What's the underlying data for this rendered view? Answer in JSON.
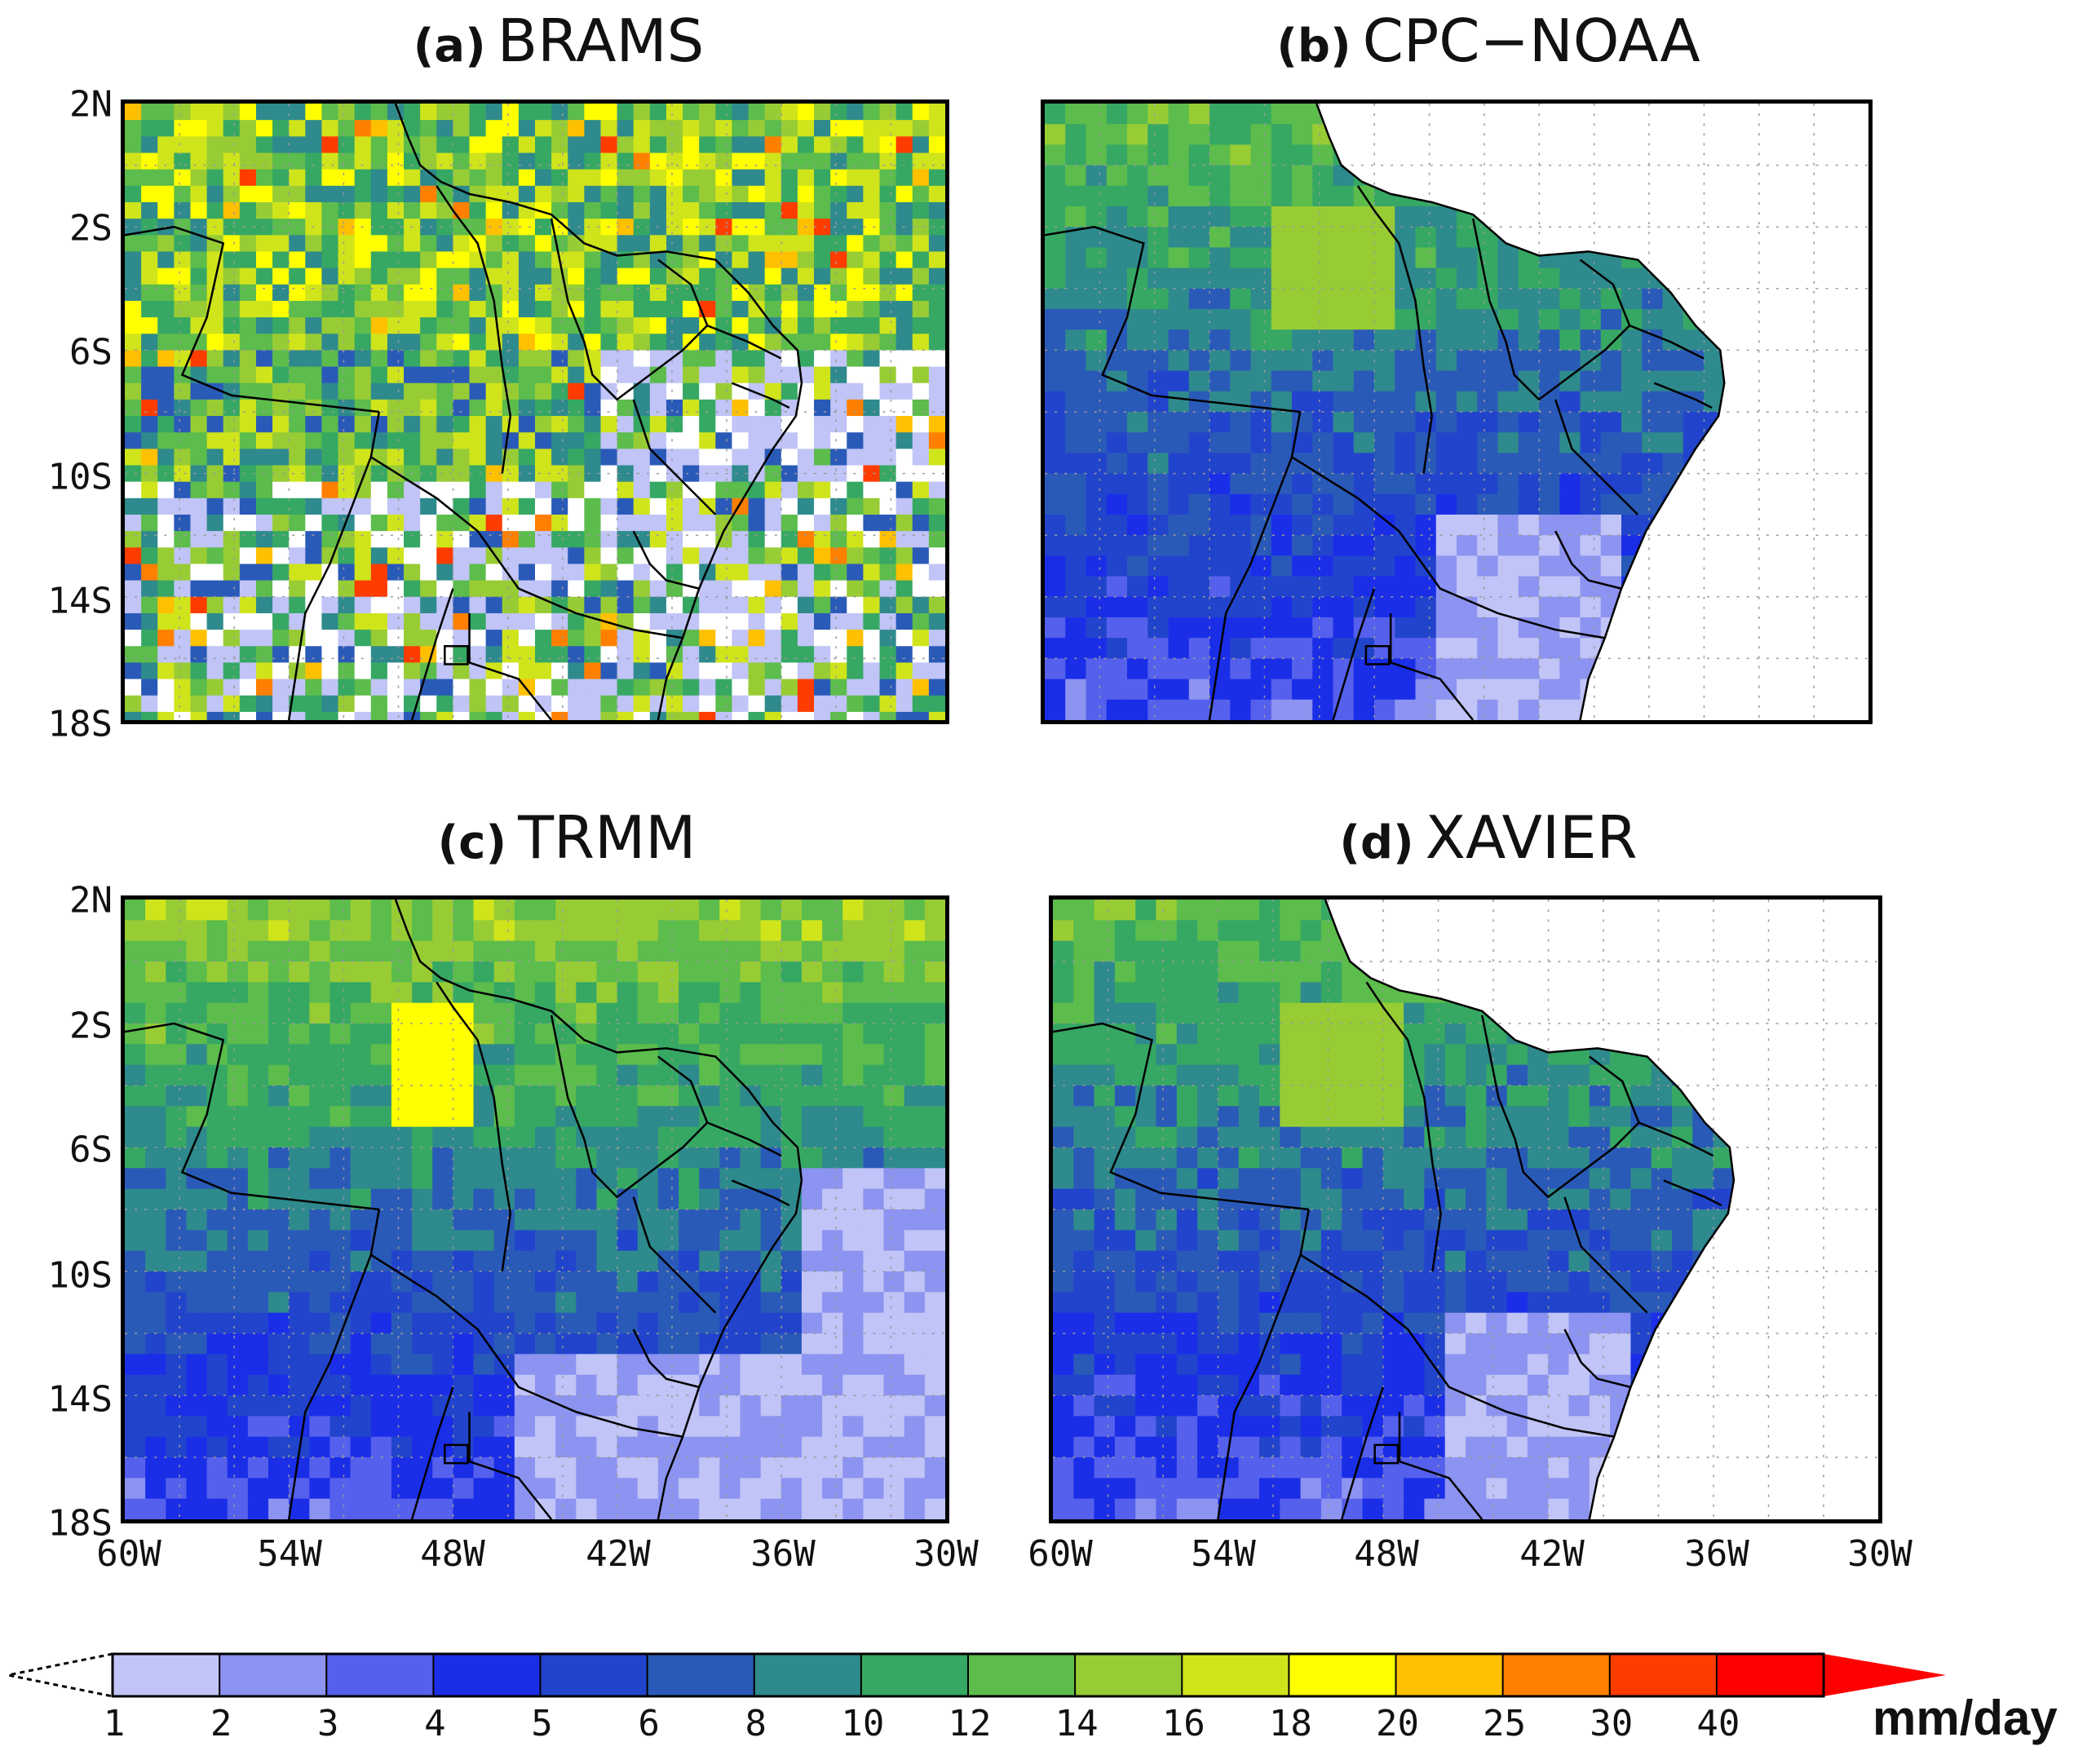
{
  "panels": [
    {
      "label": "(a)",
      "name": "BRAMS"
    },
    {
      "label": "(b)",
      "name": "CPC−NOAA"
    },
    {
      "label": "(c)",
      "name": "TRMM"
    },
    {
      "label": "(d)",
      "name": "XAVIER"
    }
  ],
  "y_ticks": [
    "2N",
    "2S",
    "6S",
    "10S",
    "14S",
    "18S"
  ],
  "x_ticks": [
    "60W",
    "54W",
    "48W",
    "42W",
    "36W",
    "30W"
  ],
  "colorbar": {
    "units": "mm/day",
    "levels": [
      "1",
      "2",
      "3",
      "4",
      "5",
      "6",
      "8",
      "10",
      "12",
      "14",
      "16",
      "18",
      "20",
      "25",
      "30",
      "40"
    ],
    "colors": [
      "#c0c4f6",
      "#8d93f0",
      "#5560ec",
      "#1a2ee8",
      "#2244cc",
      "#2a5ab8",
      "#2e8a8c",
      "#36a864",
      "#5cbc4c",
      "#98cc34",
      "#d0e41c",
      "#ffff00",
      "#ffc000",
      "#ff8000",
      "#ff3c00",
      "#ff0000"
    ]
  },
  "chart_data": [
    {
      "type": "heatmap",
      "title": "(a) BRAMS",
      "xlim": [
        "60W",
        "30W"
      ],
      "ylim": [
        "18S",
        "2N"
      ],
      "grid": true
    },
    {
      "type": "heatmap",
      "title": "(b) CPC−NOAA",
      "xlim": [
        "60W",
        "30W"
      ],
      "ylim": [
        "18S",
        "2N"
      ],
      "grid": true
    },
    {
      "type": "heatmap",
      "title": "(c) TRMM",
      "xlim": [
        "60W",
        "30W"
      ],
      "ylim": [
        "18S",
        "2N"
      ],
      "grid": true
    },
    {
      "type": "heatmap",
      "title": "(d) XAVIER",
      "xlim": [
        "60W",
        "30W"
      ],
      "ylim": [
        "18S",
        "2N"
      ],
      "grid": true
    }
  ]
}
